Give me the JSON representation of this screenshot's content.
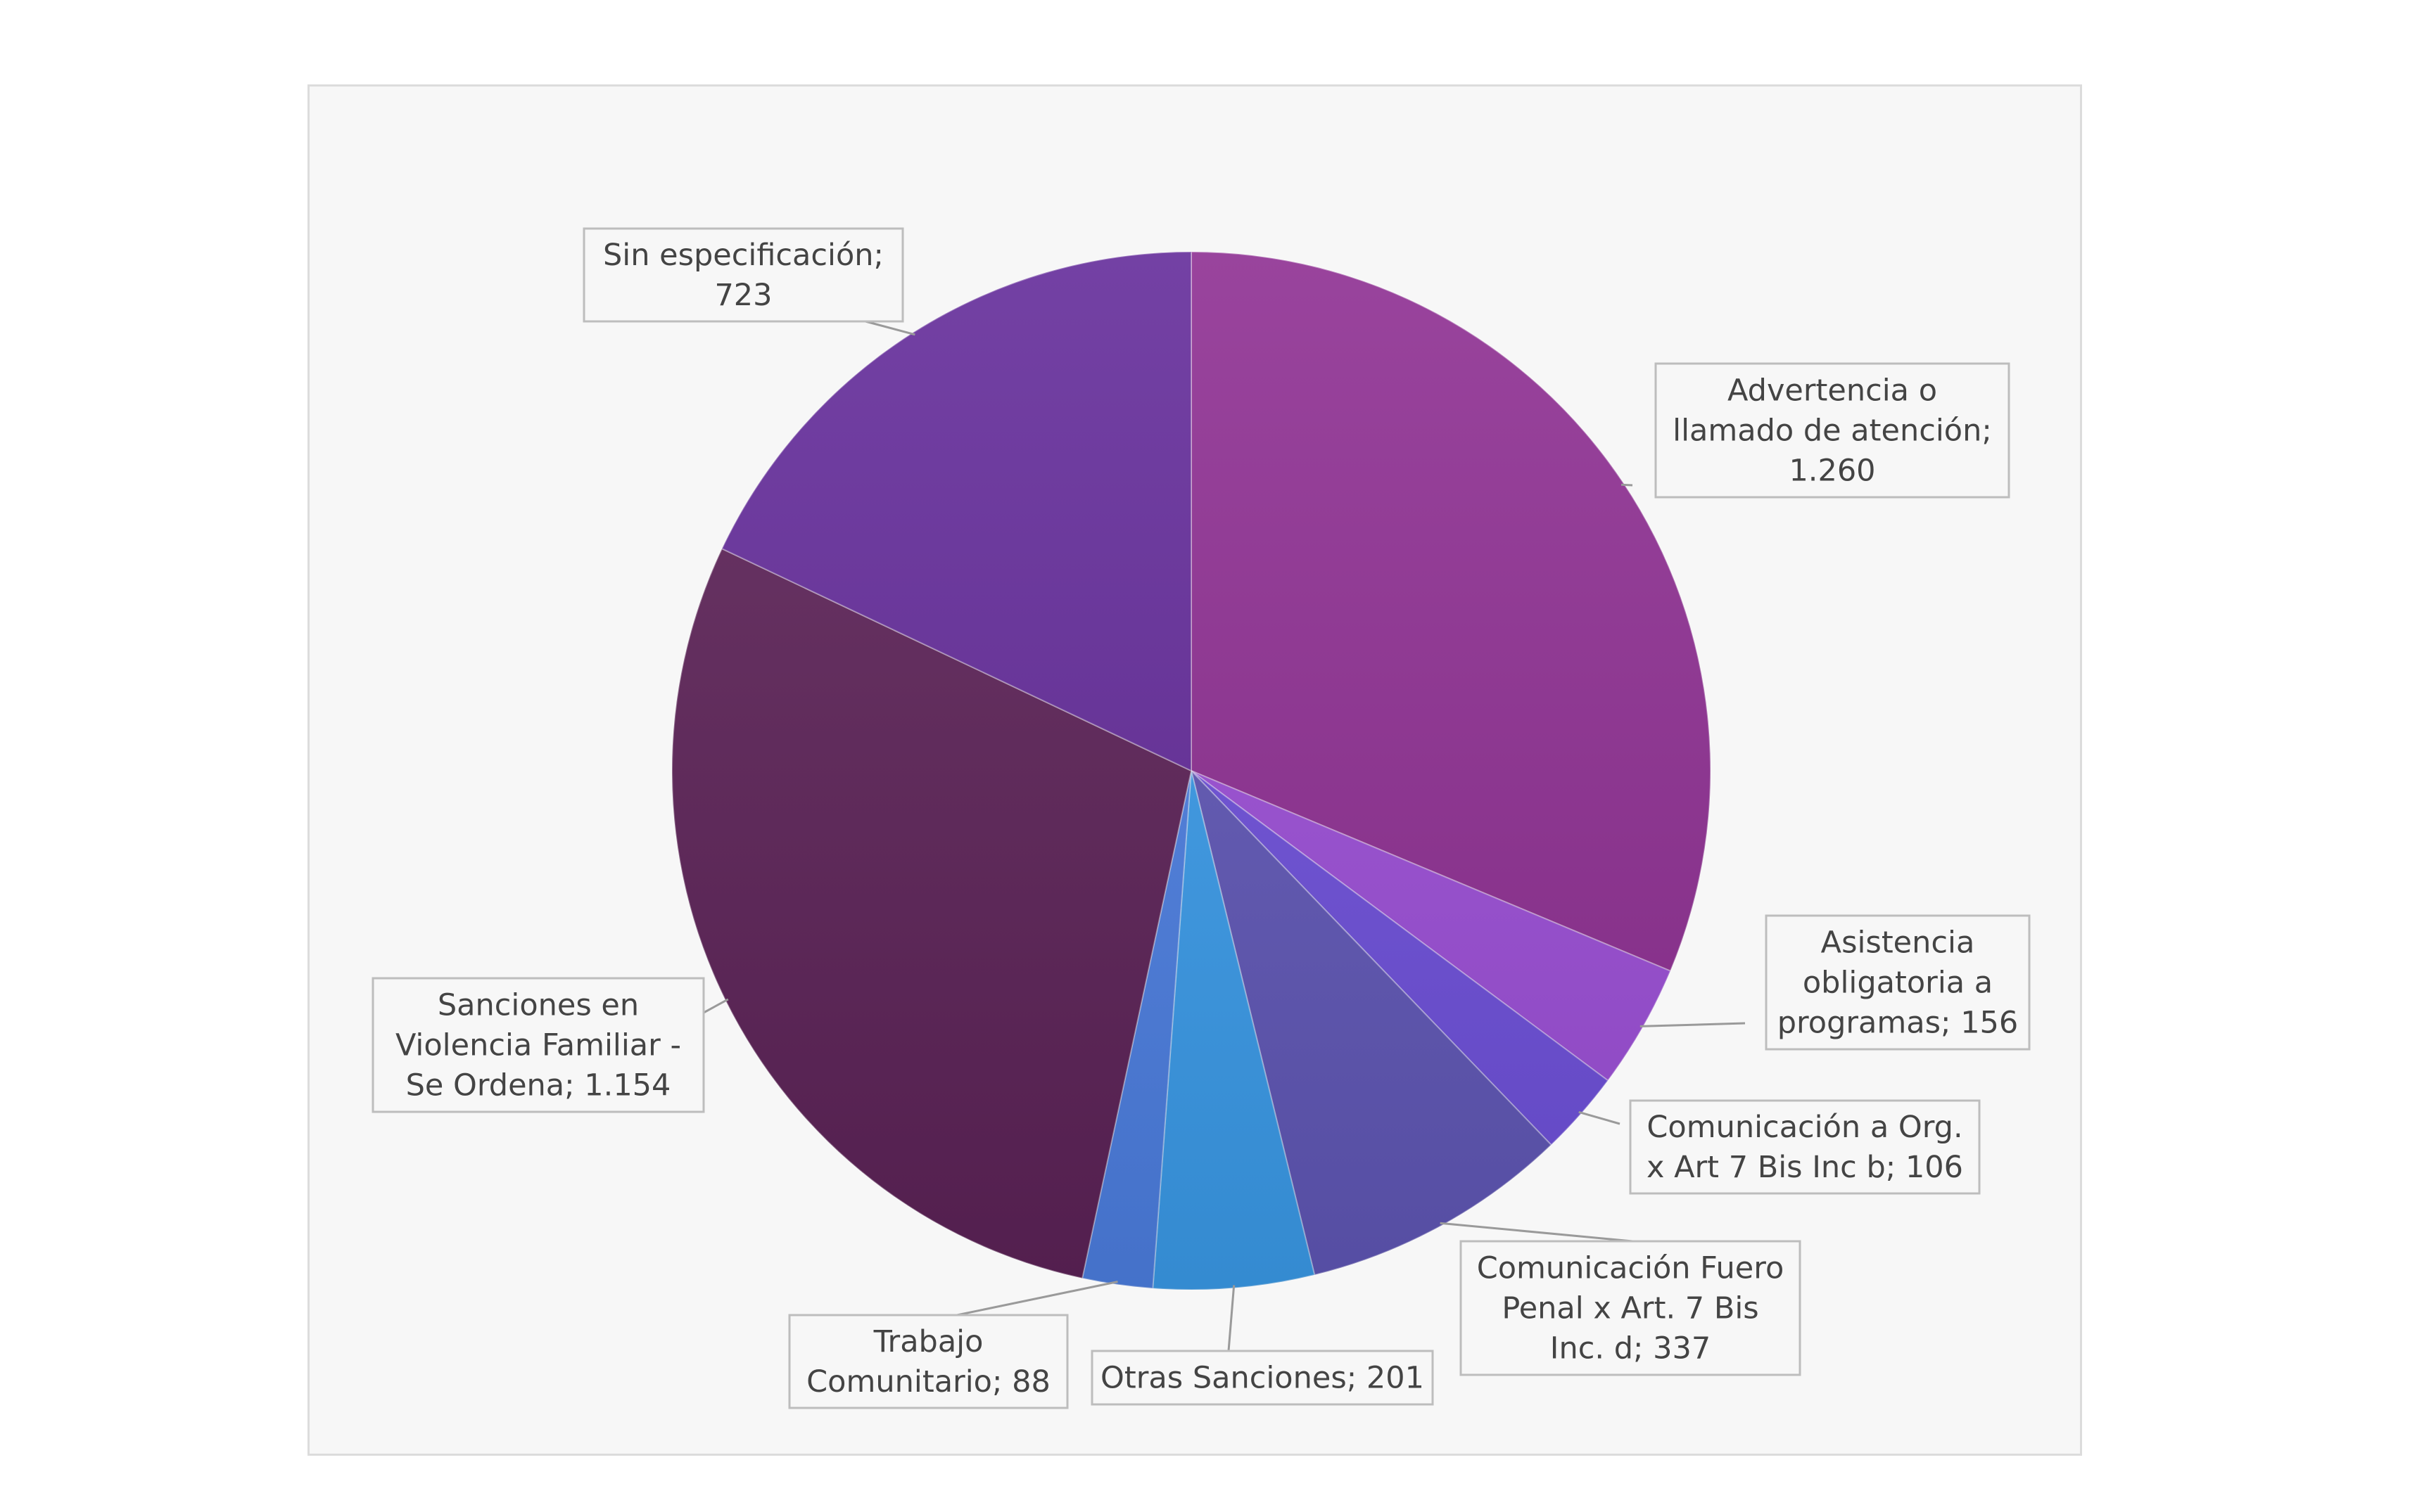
{
  "chart_data": {
    "type": "pie",
    "title": "",
    "start_angle_deg": 0,
    "direction": "clockwise",
    "slices": [
      {
        "label_lines": [
          "Advertencia o",
          "llamado  de atención;",
          "1.260"
        ],
        "label": "Advertencia o llamado de atención",
        "value": 1260,
        "color": "#8e2f92"
      },
      {
        "label_lines": [
          "Asistencia",
          "obligatoria a",
          "programas; 156"
        ],
        "label": "Asistencia obligatoria a programas",
        "value": 156,
        "color": "#9b4ed6"
      },
      {
        "label_lines": [
          "Comunicación a Org.",
          "x Art 7 Bis Inc b; 106"
        ],
        "label": "Comunicación a Org. x Art 7 Bis Inc b",
        "value": 106,
        "color": "#6d4fd9"
      },
      {
        "label_lines": [
          "Comunicación Fuero",
          "Penal x Art. 7 Bis",
          "Inc. d; 337"
        ],
        "label": "Comunicación Fuero Penal x Art. 7 Bis Inc. d",
        "value": 337,
        "color": "#5f56b5"
      },
      {
        "label_lines": [
          "Otras Sanciones; 201"
        ],
        "label": "Otras Sanciones",
        "value": 201,
        "color": "#3a9ae8"
      },
      {
        "label_lines": [
          "Trabajo",
          "Comunitario; 88"
        ],
        "label": "Trabajo Comunitario",
        "value": 88,
        "color": "#4c7ee0"
      },
      {
        "label_lines": [
          "Sanciones en",
          "Violencia Familiar  -",
          "Se Ordena; 1.154"
        ],
        "label": "Sanciones en Violencia Familiar - Se Ordena",
        "value": 1154,
        "color": "#5c2257"
      },
      {
        "label_lines": [
          "Sin especificación;",
          "723"
        ],
        "label": "Sin especificación",
        "value": 723,
        "color": "#642c9a"
      }
    ]
  }
}
